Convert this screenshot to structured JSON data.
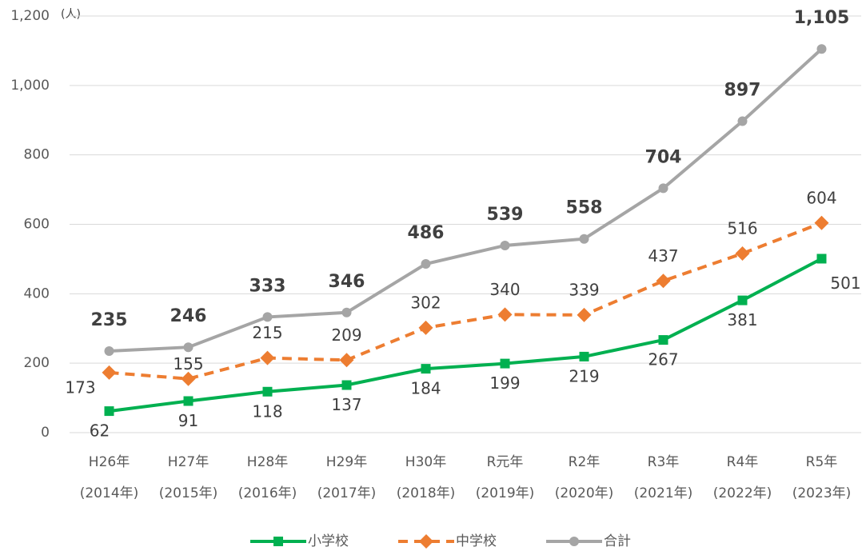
{
  "chart_data": {
    "type": "line",
    "y_unit": "(人)",
    "categories": [
      [
        "H26年",
        "(2014年)"
      ],
      [
        "H27年",
        "(2015年)"
      ],
      [
        "H28年",
        "(2016年)"
      ],
      [
        "H29年",
        "(2017年)"
      ],
      [
        "H30年",
        "(2018年)"
      ],
      [
        "R元年",
        "(2019年)"
      ],
      [
        "R2年",
        "(2020年)"
      ],
      [
        "R3年",
        "(2021年)"
      ],
      [
        "R4年",
        "(2022年)"
      ],
      [
        "R5年",
        "(2023年)"
      ]
    ],
    "series": [
      {
        "name": "小学校",
        "color": "#00b050",
        "marker": "square",
        "dashed": false,
        "values": [
          62,
          91,
          118,
          137,
          184,
          199,
          219,
          267,
          381,
          501
        ]
      },
      {
        "name": "中学校",
        "color": "#ed7d31",
        "marker": "diamond",
        "dashed": true,
        "values": [
          173,
          155,
          215,
          209,
          302,
          340,
          339,
          437,
          516,
          604
        ]
      },
      {
        "name": "合計",
        "color": "#a5a5a5",
        "marker": "circle",
        "dashed": false,
        "values": [
          235,
          246,
          333,
          346,
          486,
          539,
          558,
          704,
          897,
          1105
        ],
        "value_labels": [
          "235",
          "246",
          "333",
          "346",
          "486",
          "539",
          "558",
          "704",
          "897",
          "1,105"
        ]
      }
    ],
    "ylim": [
      0,
      1200
    ],
    "yticks": [
      0,
      200,
      400,
      600,
      800,
      {
        "value": 1000,
        "label": "1,000"
      },
      {
        "value": 1200,
        "label": "1,200"
      }
    ],
    "grid": true,
    "legend": "bottom"
  }
}
